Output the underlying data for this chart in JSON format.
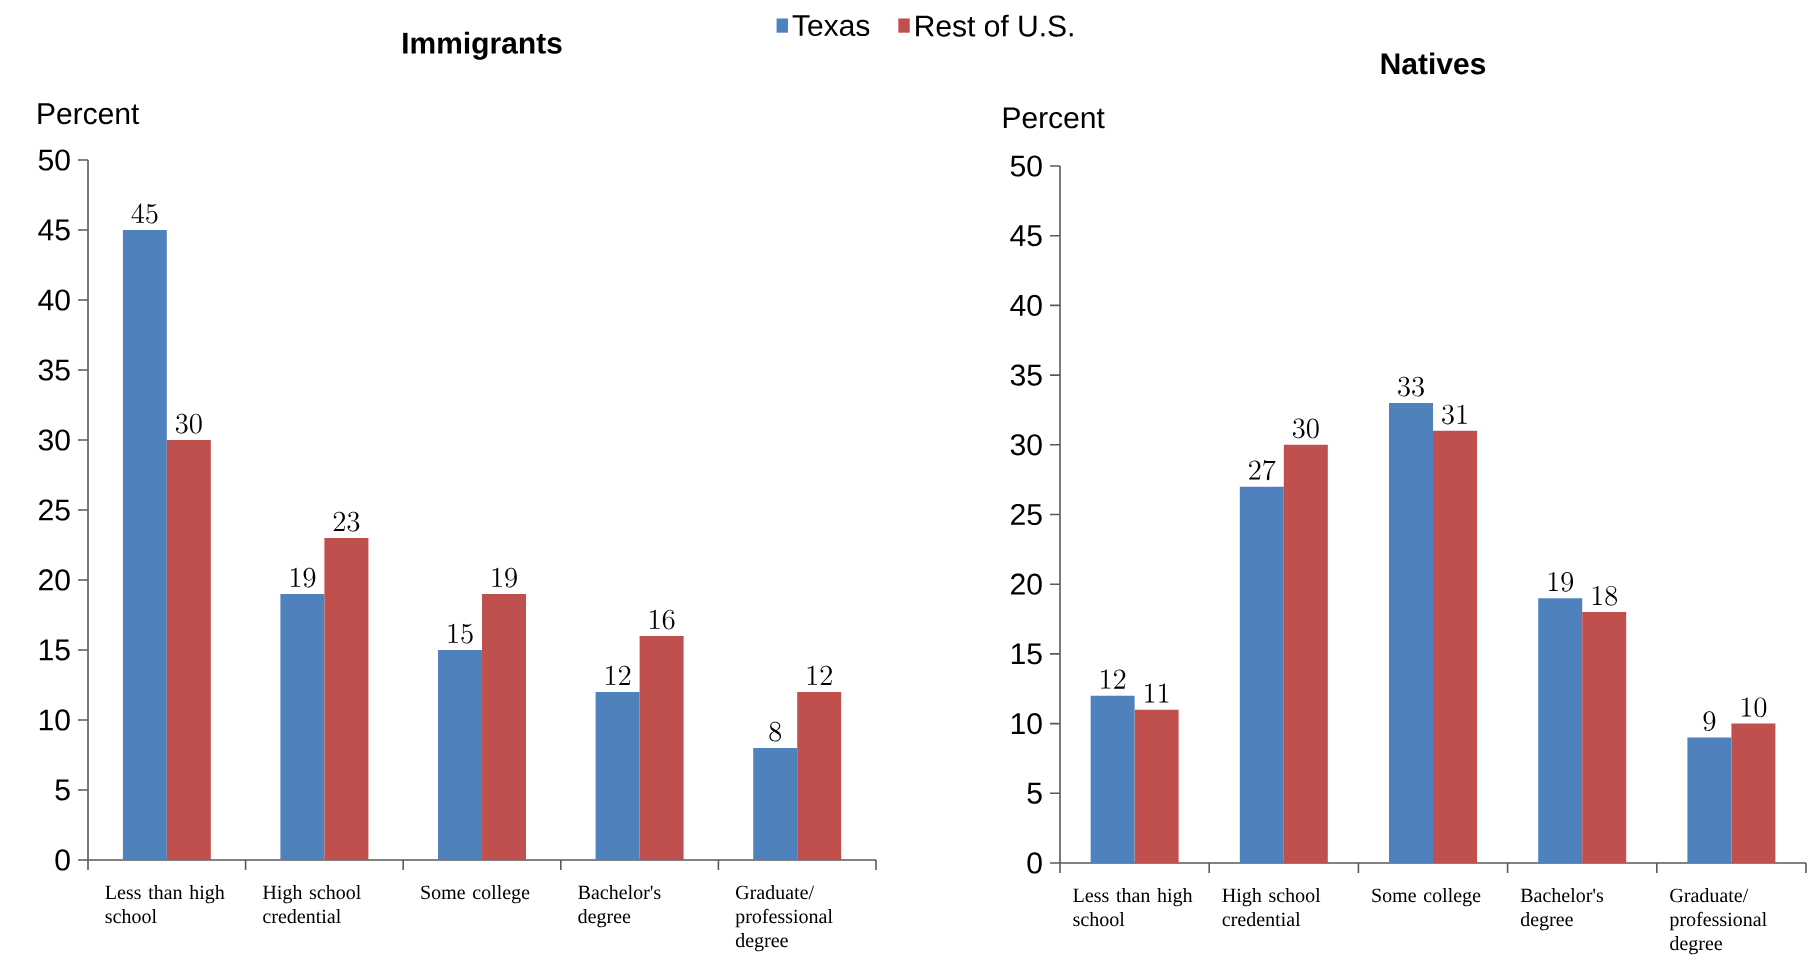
{
  "chart_data": [
    {
      "type": "bar",
      "title": "Immigrants",
      "ylabel": "Percent",
      "categories": [
        "Less than high school",
        "High school credential",
        "Some college",
        "Bachelor's degree",
        "Graduate/ professional degree"
      ],
      "series": [
        {
          "name": "Texas",
          "color": "#4f81bd",
          "values": [
            45,
            19,
            15,
            12,
            8
          ]
        },
        {
          "name": "Rest of U.S.",
          "color": "#c0504d",
          "values": [
            30,
            23,
            19,
            16,
            12
          ]
        }
      ],
      "ylim": [
        0,
        50
      ],
      "yticks": [
        0,
        5,
        10,
        15,
        20,
        25,
        30,
        35,
        40,
        45,
        50
      ],
      "data_labels": true,
      "legend": "top"
    },
    {
      "type": "bar",
      "title": "Natives",
      "ylabel": "Percent",
      "categories": [
        "Less than high school",
        "High school credential",
        "Some college",
        "Bachelor's degree",
        "Graduate/ professional degree"
      ],
      "series": [
        {
          "color": "#4f81bd",
          "values": [
            12,
            27,
            33,
            19,
            9
          ]
        },
        {
          "color": "#c0504d",
          "values": [
            11,
            30,
            31,
            18,
            10
          ]
        }
      ],
      "ylim": [
        0,
        50
      ],
      "yticks": [
        0,
        5,
        10,
        15,
        20,
        25,
        30,
        35,
        40,
        45,
        50
      ],
      "data_labels": true
    }
  ]
}
